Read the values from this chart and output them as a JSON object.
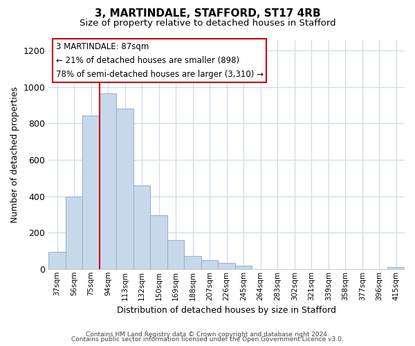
{
  "title1": "3, MARTINDALE, STAFFORD, ST17 4RB",
  "title2": "Size of property relative to detached houses in Stafford",
  "xlabel": "Distribution of detached houses by size in Stafford",
  "ylabel": "Number of detached properties",
  "categories": [
    "37sqm",
    "56sqm",
    "75sqm",
    "94sqm",
    "113sqm",
    "132sqm",
    "150sqm",
    "169sqm",
    "188sqm",
    "207sqm",
    "226sqm",
    "245sqm",
    "264sqm",
    "283sqm",
    "302sqm",
    "321sqm",
    "339sqm",
    "358sqm",
    "377sqm",
    "396sqm",
    "415sqm"
  ],
  "values": [
    95,
    400,
    845,
    965,
    880,
    460,
    295,
    160,
    70,
    50,
    33,
    20,
    0,
    0,
    0,
    0,
    0,
    0,
    0,
    0,
    10
  ],
  "bar_color": "#c8d8eb",
  "bar_edge_color": "#92b4d0",
  "vline_color": "#cc0000",
  "annotation_title": "3 MARTINDALE: 87sqm",
  "annotation_line1": "← 21% of detached houses are smaller (898)",
  "annotation_line2": "78% of semi-detached houses are larger (3,310) →",
  "annotation_box_color": "#ffffff",
  "annotation_box_edge": "#cc0000",
  "ylim": [
    0,
    1260
  ],
  "yticks": [
    0,
    200,
    400,
    600,
    800,
    1000,
    1200
  ],
  "footer1": "Contains HM Land Registry data © Crown copyright and database right 2024.",
  "footer2": "Contains public sector information licensed under the Open Government Licence v3.0.",
  "bg_color": "#ffffff",
  "grid_color": "#c8d8e8"
}
